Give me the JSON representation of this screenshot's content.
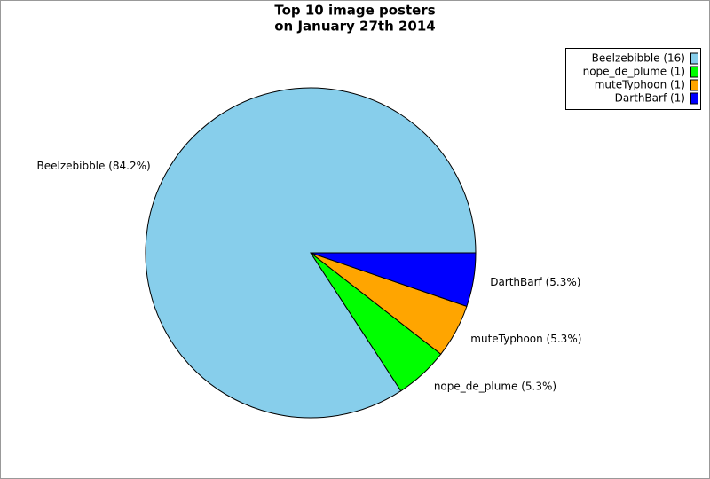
{
  "chart_data": {
    "type": "pie",
    "title": "Top 10 image posters",
    "subtitle": "on January 27th 2014",
    "categories": [
      "Beelzebibble",
      "nope_de_plume",
      "muteTyphoon",
      "DarthBarf"
    ],
    "values": [
      16,
      1,
      1,
      1
    ],
    "colors": [
      "#87ceeb",
      "#00ff00",
      "#ffa500",
      "#0000ff"
    ],
    "slice_labels": [
      "Beelzebibble (84.2%)",
      "nope_de_plume (5.3%)",
      "muteTyphoon (5.3%)",
      "DarthBarf (5.3%)"
    ],
    "legend_labels": [
      "Beelzebibble (16)",
      "nope_de_plume (1)",
      "muteTyphoon (1)",
      "DarthBarf (1)"
    ],
    "legend": "upper right"
  }
}
